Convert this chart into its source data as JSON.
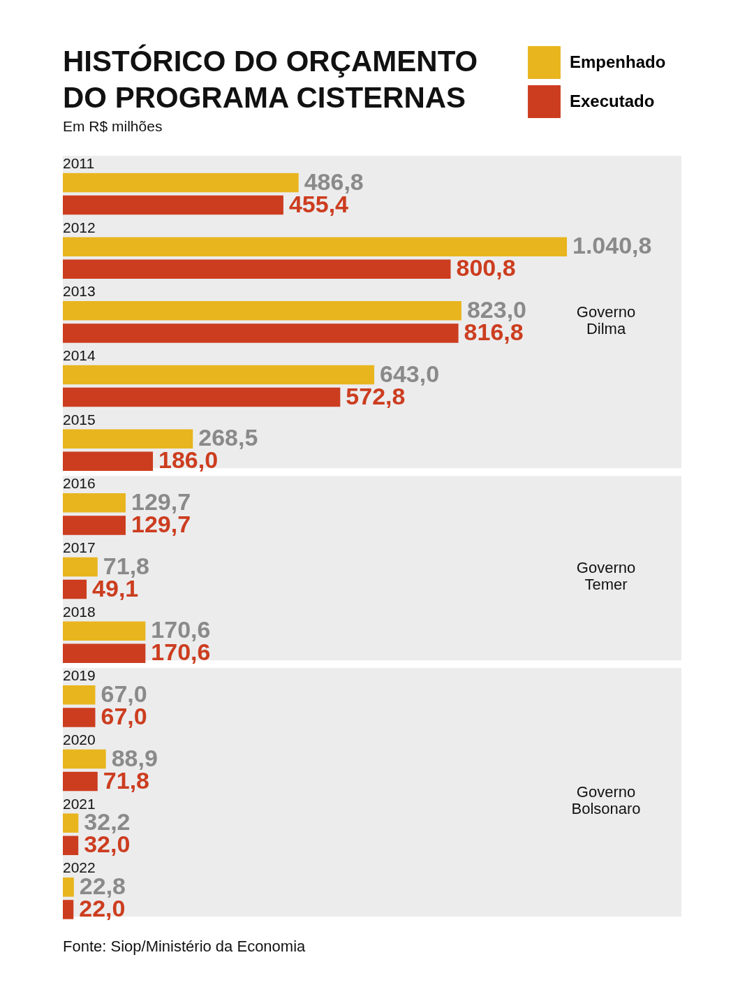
{
  "chart_data": {
    "type": "bar",
    "orientation": "horizontal",
    "title": "HISTÓRICO DO ORÇAMENTO\nDO PROGRAMA CISTERNAS",
    "subtitle": "Em R$ milhões",
    "categories": [
      "2011",
      "2012",
      "2013",
      "2014",
      "2015",
      "2016",
      "2017",
      "2018",
      "2019",
      "2020",
      "2021",
      "2022"
    ],
    "series": [
      {
        "name": "Empenhado",
        "color": "#e8b51e",
        "values": [
          486.8,
          1040.8,
          823.0,
          643.0,
          268.5,
          129.7,
          71.8,
          170.6,
          67.0,
          88.9,
          32.2,
          22.8
        ],
        "value_labels": [
          "486,8",
          "1.040,8",
          "823,0",
          "643,0",
          "268,5",
          "129,7",
          "71,8",
          "170,6",
          "67,0",
          "88,9",
          "32,2",
          "22,8"
        ]
      },
      {
        "name": "Executado",
        "color": "#cc3d1f",
        "values": [
          455.4,
          800.8,
          816.8,
          572.8,
          186.0,
          129.7,
          49.1,
          170.6,
          67.0,
          71.8,
          32.0,
          22.0
        ],
        "value_labels": [
          "455,4",
          "800,8",
          "816,8",
          "572,8",
          "186,0",
          "129,7",
          "49,1",
          "170,6",
          "67,0",
          "71,8",
          "32,0",
          "22,0"
        ]
      }
    ],
    "legend": "top right",
    "bands": [
      {
        "axis": "y",
        "from": "2011",
        "to": "2015",
        "label": "Governo Dilma",
        "color": "#ececed"
      },
      {
        "axis": "y",
        "from": "2016",
        "to": "2018",
        "label": "Governo Temer",
        "color": "#ececed"
      },
      {
        "axis": "y",
        "from": "2019",
        "to": "2022",
        "label": "Governo Bolsonaro",
        "color": "#ececed"
      }
    ],
    "annotations": [
      "Fonte: Siop/Ministério da Economia"
    ]
  }
}
